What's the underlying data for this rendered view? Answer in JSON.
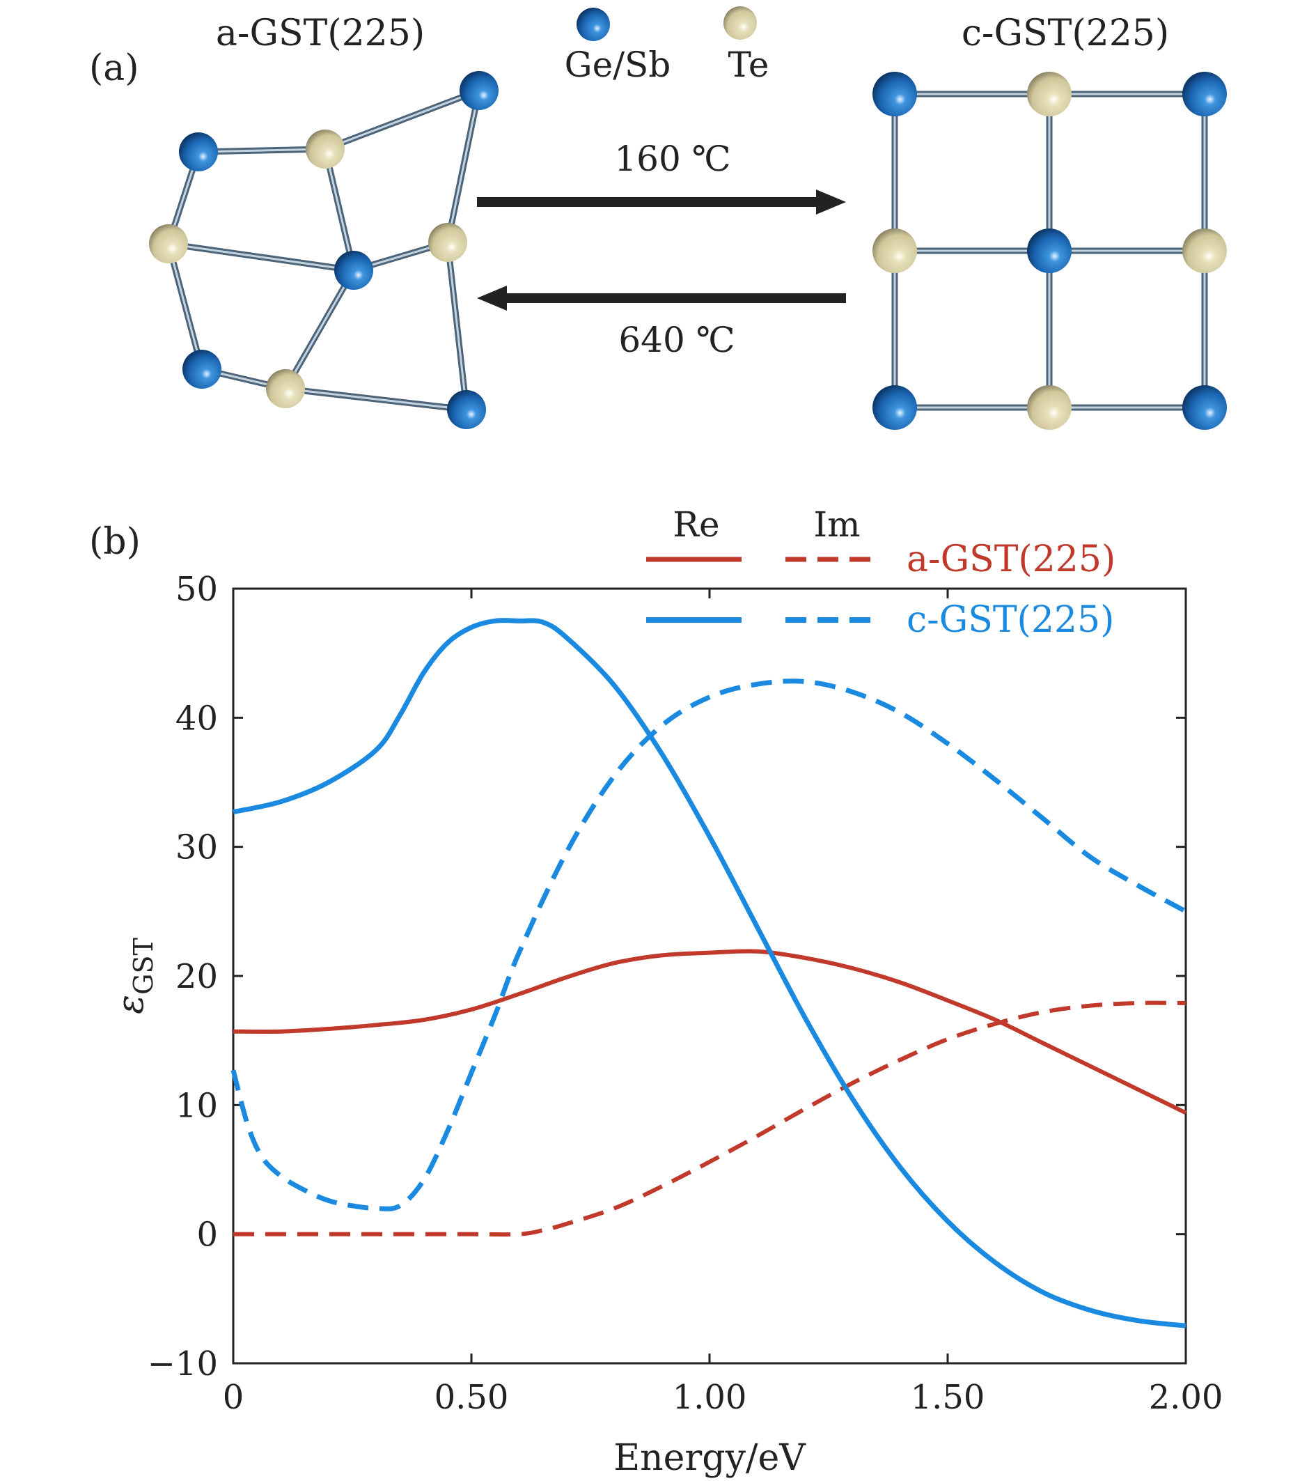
{
  "panel_a": {
    "label": "(a)",
    "amorphous_title": "a-GST(225)",
    "crystal_title": "c-GST(225)",
    "legend": {
      "gesb_label": "Ge/Sb",
      "te_label": "Te",
      "gesb_color": "#1a64b0",
      "te_color": "#cfc69a"
    },
    "forward_temp": "160 ℃",
    "reverse_temp": "640 ℃",
    "arrow_color": "#222222",
    "bond_color": "#4d6478"
  },
  "panel_b": {
    "label": "(b)",
    "legend_re": "Re",
    "legend_im": "Im"
  },
  "chart_data": {
    "type": "line",
    "xlabel": "Energy/eV",
    "ylabel": "ε",
    "ylabel_sub": "GST",
    "xlim": [
      0,
      2.0
    ],
    "ylim": [
      -10,
      50
    ],
    "xticks": [
      0,
      0.5,
      1.0,
      1.5,
      2.0
    ],
    "xtick_labels": [
      "0",
      "0.50",
      "1.00",
      "1.50",
      "2.00"
    ],
    "yticks": [
      -10,
      0,
      10,
      20,
      30,
      40,
      50
    ],
    "ytick_labels": [
      "−10",
      "0",
      "10",
      "20",
      "30",
      "40",
      "50"
    ],
    "legend_position": "top-right",
    "grid": false,
    "series": [
      {
        "name": "a-GST(225)",
        "component": "Re",
        "style": "solid",
        "color": "#c0392b",
        "x": [
          0,
          0.1,
          0.2,
          0.3,
          0.4,
          0.5,
          0.6,
          0.7,
          0.8,
          0.9,
          1.0,
          1.1,
          1.2,
          1.3,
          1.4,
          1.5,
          1.6,
          1.7,
          1.8,
          1.9,
          2.0
        ],
        "y": [
          15.7,
          15.7,
          15.9,
          16.2,
          16.6,
          17.4,
          18.6,
          19.9,
          21.0,
          21.6,
          21.8,
          21.9,
          21.4,
          20.6,
          19.5,
          18.1,
          16.6,
          14.8,
          13.0,
          11.2,
          9.4
        ]
      },
      {
        "name": "a-GST(225)",
        "component": "Im",
        "style": "dashed",
        "color": "#c0392b",
        "x": [
          0,
          0.1,
          0.2,
          0.3,
          0.4,
          0.5,
          0.6,
          0.65,
          0.7,
          0.8,
          0.9,
          1.0,
          1.1,
          1.2,
          1.3,
          1.4,
          1.5,
          1.6,
          1.7,
          1.8,
          1.9,
          2.0
        ],
        "y": [
          0,
          0,
          0,
          0,
          0,
          0,
          0,
          0.3,
          0.8,
          2.0,
          3.7,
          5.6,
          7.6,
          9.7,
          11.7,
          13.5,
          15.1,
          16.3,
          17.2,
          17.7,
          17.9,
          17.9
        ]
      },
      {
        "name": "c-GST(225)",
        "component": "Re",
        "style": "solid",
        "color": "#1a8ae0",
        "x": [
          0,
          0.1,
          0.2,
          0.3,
          0.35,
          0.4,
          0.45,
          0.5,
          0.55,
          0.6,
          0.65,
          0.7,
          0.8,
          0.9,
          1.0,
          1.1,
          1.2,
          1.3,
          1.4,
          1.5,
          1.6,
          1.7,
          1.8,
          1.9,
          2.0
        ],
        "y": [
          32.7,
          33.5,
          35.0,
          37.5,
          40.2,
          43.5,
          45.8,
          47.0,
          47.5,
          47.5,
          47.4,
          46.2,
          42.5,
          37.2,
          30.8,
          23.8,
          16.8,
          10.5,
          5.2,
          1.0,
          -2.2,
          -4.5,
          -5.9,
          -6.7,
          -7.1
        ]
      },
      {
        "name": "c-GST(225)",
        "component": "Im",
        "style": "dashed",
        "color": "#1a8ae0",
        "x": [
          0,
          0.03,
          0.06,
          0.1,
          0.15,
          0.2,
          0.25,
          0.3,
          0.35,
          0.4,
          0.45,
          0.5,
          0.55,
          0.6,
          0.7,
          0.8,
          0.9,
          1.0,
          1.1,
          1.2,
          1.3,
          1.4,
          1.5,
          1.6,
          1.7,
          1.8,
          1.9,
          2.0
        ],
        "y": [
          12.7,
          8.5,
          6.0,
          4.5,
          3.4,
          2.6,
          2.2,
          2.0,
          2.2,
          4.2,
          8.0,
          12.5,
          17.0,
          21.8,
          29.6,
          35.5,
          39.4,
          41.6,
          42.6,
          42.8,
          42.0,
          40.4,
          38.0,
          35.2,
          32.2,
          29.2,
          27.0,
          25.0
        ]
      }
    ]
  }
}
